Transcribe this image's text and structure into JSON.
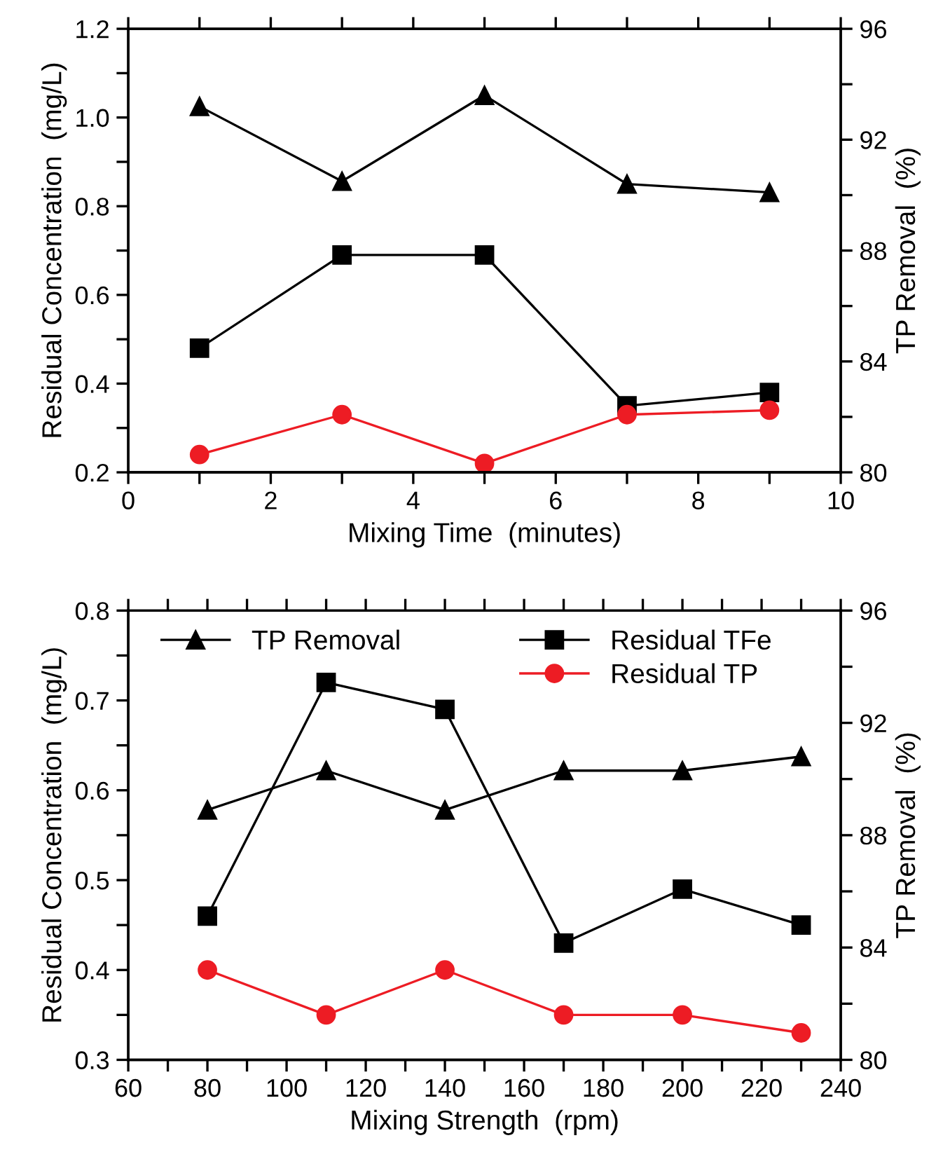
{
  "chart_data": [
    {
      "type": "line",
      "xlabel": "Mixing Time  (minutes)",
      "ylabel": "Residual Concentration  (mg/L)",
      "y2label": "TP Removal  (%)",
      "x": [
        1,
        3,
        5,
        7,
        9
      ],
      "series": [
        {
          "color": "#000000",
          "axis": "y2",
          "marker": "triangle",
          "values": [
            93.2,
            90.5,
            93.6,
            90.4,
            90.1
          ]
        },
        {
          "color": "#000000",
          "marker": "square",
          "values": [
            0.48,
            0.69,
            0.69,
            0.35,
            0.38
          ]
        },
        {
          "color": "#ed1c24",
          "marker": "circle",
          "values": [
            0.24,
            0.33,
            0.22,
            0.33,
            0.34
          ]
        }
      ],
      "xlim": [
        0,
        10
      ],
      "xticks": [
        0,
        {
          "value": 1,
          "label": null
        },
        2,
        {
          "value": 3,
          "label": null
        },
        4,
        {
          "value": 5,
          "label": null
        },
        6,
        {
          "value": 7,
          "label": null
        },
        8,
        {
          "value": 9,
          "label": null
        },
        10
      ],
      "ylim": [
        0.2,
        1.2
      ],
      "yticks": [
        0.2,
        {
          "value": 0.3,
          "label": null
        },
        0.4,
        {
          "value": 0.5,
          "label": null
        },
        0.6,
        {
          "value": 0.7,
          "label": null
        },
        0.8,
        {
          "value": 0.9,
          "label": null
        },
        {
          "value": 1.0,
          "label": "1.0"
        },
        {
          "value": 1.1,
          "label": null
        },
        1.2
      ],
      "y2lim": [
        80,
        96
      ],
      "y2ticks": [
        80,
        {
          "value": 82,
          "label": null
        },
        84,
        {
          "value": 86,
          "label": null
        },
        88,
        {
          "value": 90,
          "label": null
        },
        92,
        {
          "value": 94,
          "label": null
        },
        96
      ],
      "grid": false,
      "legend": false
    },
    {
      "type": "line",
      "xlabel": "Mixing Strength  (rpm)",
      "ylabel": "Residual Concentration  (mg/L)",
      "y2label": "TP Removal  (%)",
      "x": [
        80,
        110,
        140,
        170,
        200,
        230
      ],
      "series": [
        {
          "name": "TP Removal",
          "color": "#000000",
          "axis": "y2",
          "marker": "triangle",
          "values": [
            88.9,
            90.3,
            88.9,
            90.3,
            90.3,
            90.8
          ]
        },
        {
          "name": "Residual TFe",
          "color": "#000000",
          "marker": "square",
          "values": [
            0.46,
            0.72,
            0.69,
            0.43,
            0.49,
            0.45
          ]
        },
        {
          "name": "Residual TP",
          "color": "#ed1c24",
          "marker": "circle",
          "values": [
            0.4,
            0.35,
            0.4,
            0.35,
            0.35,
            0.33
          ]
        }
      ],
      "xlim": [
        60,
        240
      ],
      "xticks": [
        60,
        {
          "value": 70,
          "label": null
        },
        80,
        {
          "value": 90,
          "label": null
        },
        100,
        {
          "value": 110,
          "label": null
        },
        120,
        {
          "value": 130,
          "label": null
        },
        140,
        {
          "value": 150,
          "label": null
        },
        160,
        {
          "value": 170,
          "label": null
        },
        180,
        {
          "value": 190,
          "label": null
        },
        200,
        {
          "value": 210,
          "label": null
        },
        220,
        {
          "value": 230,
          "label": null
        },
        240
      ],
      "ylim": [
        0.3,
        0.8
      ],
      "yticks": [
        0.3,
        {
          "value": 0.35,
          "label": null
        },
        0.4,
        {
          "value": 0.45,
          "label": null
        },
        0.5,
        {
          "value": 0.55,
          "label": null
        },
        0.6,
        {
          "value": 0.65,
          "label": null
        },
        0.7,
        {
          "value": 0.75,
          "label": null
        },
        0.8
      ],
      "y2lim": [
        80,
        96
      ],
      "y2ticks": [
        80,
        {
          "value": 82,
          "label": null
        },
        84,
        {
          "value": 86,
          "label": null
        },
        88,
        {
          "value": 90,
          "label": null
        },
        92,
        {
          "value": 94,
          "label": null
        },
        96
      ],
      "grid": false,
      "legend": "top"
    }
  ]
}
